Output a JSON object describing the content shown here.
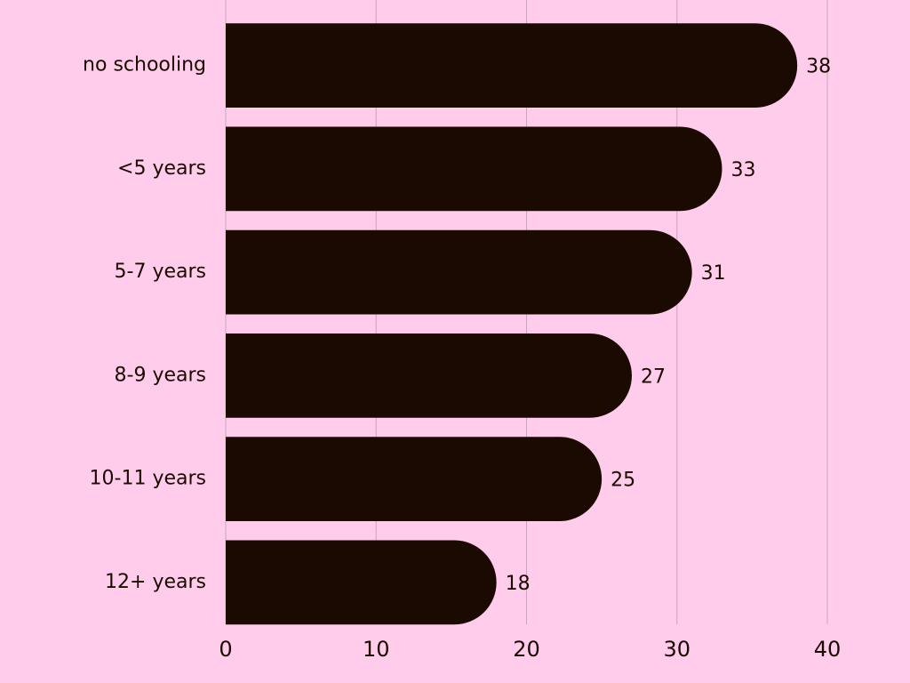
{
  "chart_data": {
    "type": "hbar",
    "categories": [
      "no schooling",
      "<5 years",
      "5-7 years",
      "8-9 years",
      "10-11 years",
      "12+ years"
    ],
    "values": [
      38,
      33,
      31,
      27,
      25,
      18
    ],
    "color": "#1a0a02",
    "xlim": [
      0,
      40
    ],
    "xticks": [
      0,
      10,
      20,
      30,
      40
    ],
    "grid": true
  }
}
